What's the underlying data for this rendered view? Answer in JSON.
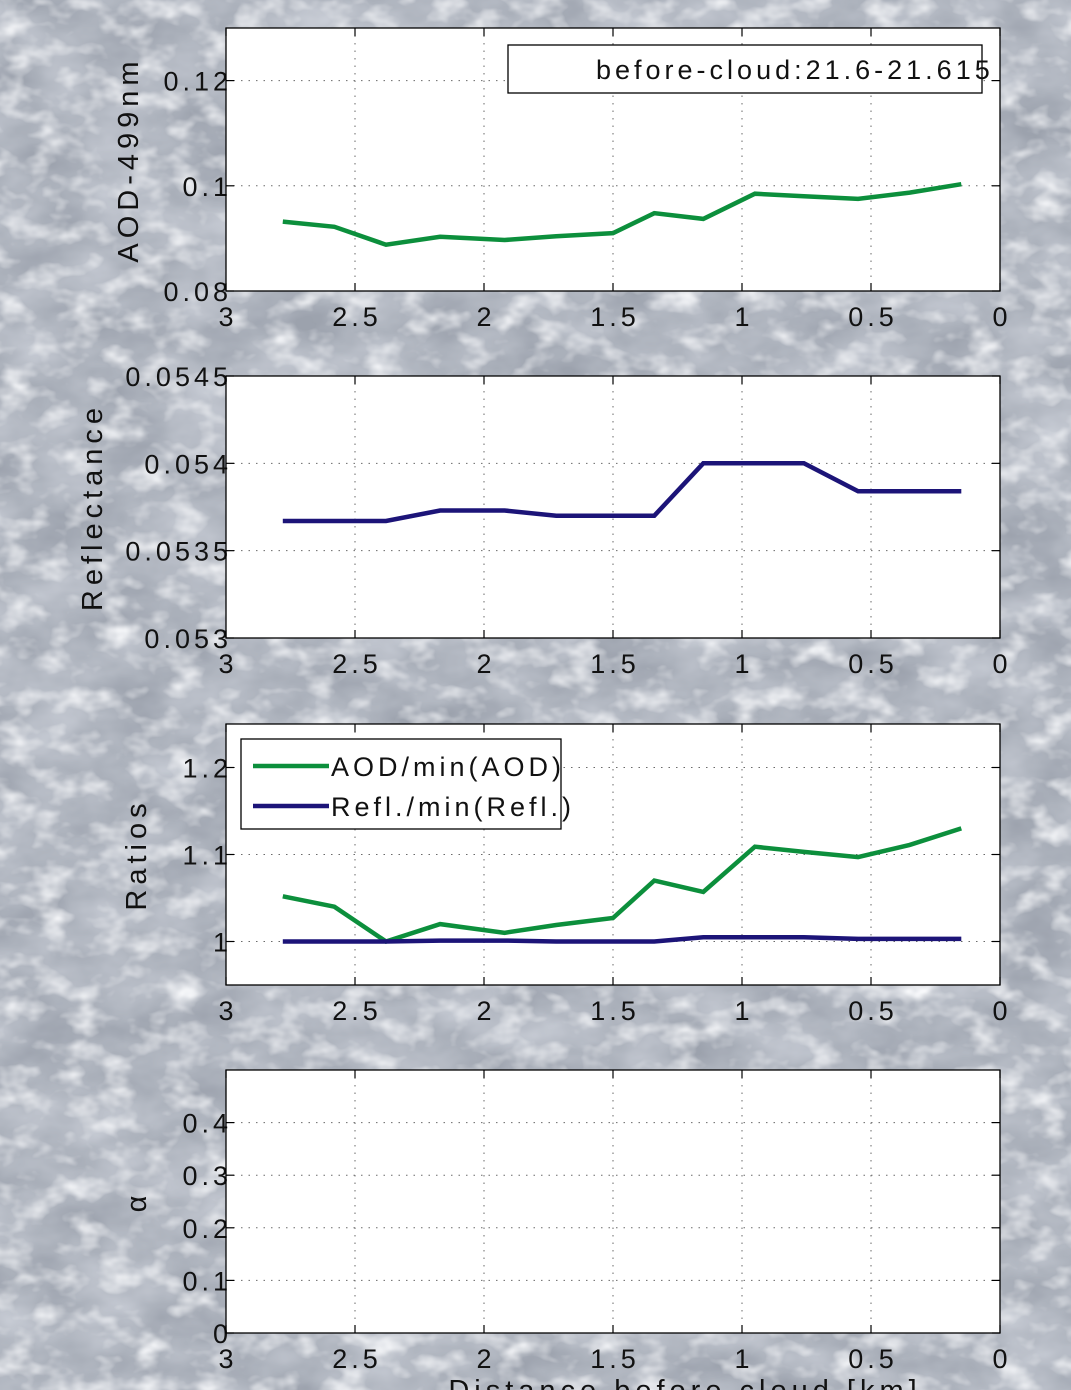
{
  "figure": {
    "xlabel": "Distance before cloud [km]"
  },
  "colors": {
    "green": "#0c8f3c",
    "navy": "#1c1478",
    "grid": "#6a6a6a",
    "axes_bg": "#ffffff"
  },
  "chart_data": [
    {
      "type": "line",
      "ylabel": "AOD-499nm",
      "xlim": [
        3,
        0
      ],
      "ylim": [
        0.08,
        0.13
      ],
      "xticks": [
        "3",
        "2.5",
        "2",
        "1.5",
        "1",
        "0.5",
        "0"
      ],
      "yticks": [
        "0.08",
        "0.1",
        "0.12"
      ],
      "grid": true,
      "annotation": "before-cloud:21.6-21.615",
      "series": [
        {
          "color": "#0c8f3c",
          "x": [
            2.78,
            2.58,
            2.38,
            2.17,
            1.92,
            1.72,
            1.5,
            1.34,
            1.15,
            0.95,
            0.76,
            0.55,
            0.35,
            0.15
          ],
          "y": [
            0.0932,
            0.0922,
            0.0888,
            0.0903,
            0.0897,
            0.0904,
            0.091,
            0.0948,
            0.0937,
            0.0985,
            0.098,
            0.0975,
            0.0987,
            0.1003
          ]
        }
      ]
    },
    {
      "type": "line",
      "ylabel": "Reflectance",
      "xlim": [
        3,
        0
      ],
      "ylim": [
        0.053,
        0.0545
      ],
      "xticks": [
        "3",
        "2.5",
        "2",
        "1.5",
        "1",
        "0.5",
        "0"
      ],
      "yticks": [
        "0.053",
        "0.0535",
        "0.054",
        "0.0545"
      ],
      "grid": true,
      "series": [
        {
          "color": "#1c1478",
          "x": [
            2.78,
            2.58,
            2.38,
            2.17,
            1.92,
            1.72,
            1.5,
            1.34,
            1.15,
            0.95,
            0.76,
            0.55,
            0.35,
            0.15
          ],
          "y": [
            0.05367,
            0.05367,
            0.05367,
            0.05373,
            0.05373,
            0.0537,
            0.0537,
            0.0537,
            0.054,
            0.054,
            0.054,
            0.05384,
            0.05384,
            0.05384
          ]
        }
      ]
    },
    {
      "type": "line",
      "ylabel": "Ratios",
      "xlim": [
        3,
        0
      ],
      "ylim": [
        0.95,
        1.25
      ],
      "xticks": [
        "3",
        "2.5",
        "2",
        "1.5",
        "1",
        "0.5",
        "0"
      ],
      "yticks": [
        "1",
        "1.1",
        "1.2"
      ],
      "grid": true,
      "legend_position": "top-left",
      "series": [
        {
          "name": "AOD/min(AOD)",
          "color": "#0c8f3c",
          "x": [
            2.78,
            2.58,
            2.38,
            2.17,
            1.92,
            1.72,
            1.5,
            1.34,
            1.15,
            0.95,
            0.76,
            0.55,
            0.35,
            0.15
          ],
          "y": [
            1.052,
            1.04,
            1.0,
            1.02,
            1.01,
            1.019,
            1.027,
            1.07,
            1.057,
            1.109,
            1.103,
            1.097,
            1.111,
            1.13
          ]
        },
        {
          "name": "Refl./min(Refl.)",
          "color": "#1c1478",
          "x": [
            2.78,
            2.58,
            2.38,
            2.17,
            1.92,
            1.72,
            1.5,
            1.34,
            1.15,
            0.95,
            0.76,
            0.55,
            0.35,
            0.15
          ],
          "y": [
            1.0,
            1.0,
            1.0,
            1.001,
            1.001,
            1.0,
            1.0,
            1.0,
            1.005,
            1.005,
            1.005,
            1.003,
            1.003,
            1.003
          ]
        }
      ]
    },
    {
      "type": "line",
      "ylabel": "α",
      "xlim": [
        3,
        0
      ],
      "ylim": [
        0,
        0.5
      ],
      "xticks": [
        "3",
        "2.5",
        "2",
        "1.5",
        "1",
        "0.5",
        "0"
      ],
      "yticks": [
        "0",
        "0.1",
        "0.2",
        "0.3",
        "0.4"
      ],
      "grid": true,
      "series": []
    }
  ]
}
